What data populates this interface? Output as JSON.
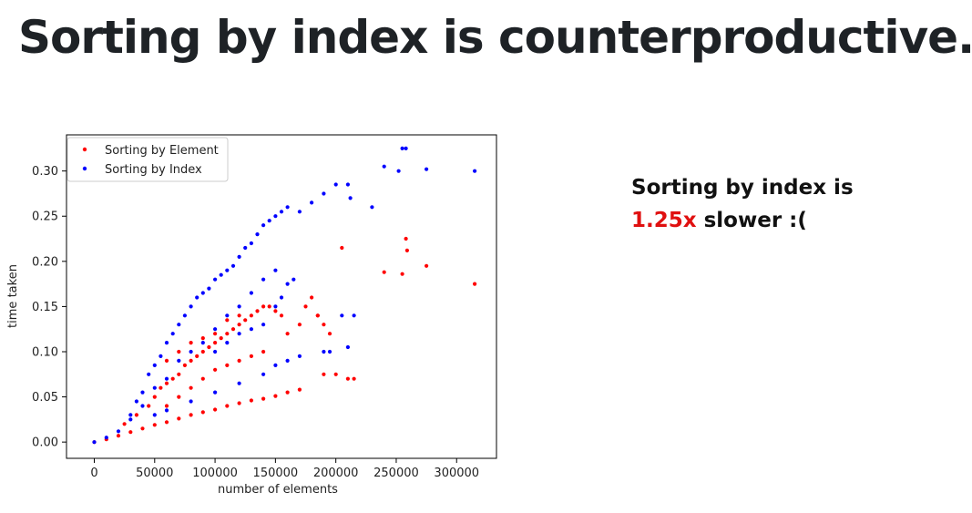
{
  "slide": {
    "title": "Sorting by index is counterproductive..",
    "summary": {
      "line1": "Sorting by index is",
      "ratio": "1.25x",
      "line2_rest": " slower :("
    },
    "colors": {
      "highlight": "#e01010",
      "title": "#1e2226"
    }
  },
  "chart_data": {
    "type": "scatter",
    "title": "",
    "xlabel": "number of elements",
    "ylabel": "time taken",
    "xlim": [
      -23000,
      333000
    ],
    "ylim": [
      -0.018,
      0.34
    ],
    "xticks": [
      0,
      50000,
      100000,
      150000,
      200000,
      250000,
      300000
    ],
    "yticks": [
      0.0,
      0.05,
      0.1,
      0.15,
      0.2,
      0.25,
      0.3
    ],
    "ytick_labels": [
      "0.00",
      "0.05",
      "0.10",
      "0.15",
      "0.20",
      "0.25",
      "0.30"
    ],
    "legend_position": "top-left",
    "grid": false,
    "series": [
      {
        "name": "Sorting by Element",
        "color": "#ff0000",
        "points": [
          [
            0,
            0
          ],
          [
            10000,
            0.003
          ],
          [
            20000,
            0.007
          ],
          [
            30000,
            0.011
          ],
          [
            40000,
            0.015
          ],
          [
            50000,
            0.019
          ],
          [
            60000,
            0.022
          ],
          [
            70000,
            0.026
          ],
          [
            80000,
            0.03
          ],
          [
            90000,
            0.033
          ],
          [
            100000,
            0.036
          ],
          [
            110000,
            0.04
          ],
          [
            120000,
            0.043
          ],
          [
            130000,
            0.046
          ],
          [
            140000,
            0.048
          ],
          [
            150000,
            0.051
          ],
          [
            160000,
            0.055
          ],
          [
            170000,
            0.058
          ],
          [
            25000,
            0.02
          ],
          [
            35000,
            0.03
          ],
          [
            45000,
            0.04
          ],
          [
            50000,
            0.05
          ],
          [
            55000,
            0.06
          ],
          [
            60000,
            0.065
          ],
          [
            65000,
            0.07
          ],
          [
            70000,
            0.075
          ],
          [
            75000,
            0.085
          ],
          [
            80000,
            0.09
          ],
          [
            85000,
            0.095
          ],
          [
            90000,
            0.1
          ],
          [
            95000,
            0.105
          ],
          [
            100000,
            0.11
          ],
          [
            105000,
            0.115
          ],
          [
            110000,
            0.12
          ],
          [
            115000,
            0.125
          ],
          [
            120000,
            0.13
          ],
          [
            125000,
            0.135
          ],
          [
            130000,
            0.14
          ],
          [
            135000,
            0.145
          ],
          [
            140000,
            0.15
          ],
          [
            145000,
            0.15
          ],
          [
            150000,
            0.145
          ],
          [
            155000,
            0.14
          ],
          [
            60000,
            0.04
          ],
          [
            70000,
            0.05
          ],
          [
            80000,
            0.06
          ],
          [
            90000,
            0.07
          ],
          [
            100000,
            0.08
          ],
          [
            110000,
            0.085
          ],
          [
            120000,
            0.09
          ],
          [
            130000,
            0.095
          ],
          [
            140000,
            0.1
          ],
          [
            60000,
            0.09
          ],
          [
            70000,
            0.1
          ],
          [
            80000,
            0.11
          ],
          [
            90000,
            0.115
          ],
          [
            100000,
            0.12
          ],
          [
            110000,
            0.135
          ],
          [
            120000,
            0.14
          ],
          [
            160000,
            0.12
          ],
          [
            170000,
            0.13
          ],
          [
            175000,
            0.15
          ],
          [
            180000,
            0.16
          ],
          [
            185000,
            0.14
          ],
          [
            190000,
            0.13
          ],
          [
            195000,
            0.12
          ],
          [
            205000,
            0.215
          ],
          [
            210000,
            0.07
          ],
          [
            215000,
            0.07
          ],
          [
            200000,
            0.075
          ],
          [
            190000,
            0.075
          ],
          [
            185000,
            0.14
          ],
          [
            240000,
            0.188
          ],
          [
            255000,
            0.186
          ],
          [
            258000,
            0.225
          ],
          [
            259000,
            0.212
          ],
          [
            275000,
            0.195
          ],
          [
            315000,
            0.175
          ]
        ]
      },
      {
        "name": "Sorting by Index",
        "color": "#0000ff",
        "points": [
          [
            0,
            0
          ],
          [
            10000,
            0.005
          ],
          [
            20000,
            0.012
          ],
          [
            30000,
            0.025
          ],
          [
            35000,
            0.045
          ],
          [
            40000,
            0.055
          ],
          [
            45000,
            0.075
          ],
          [
            50000,
            0.085
          ],
          [
            55000,
            0.095
          ],
          [
            60000,
            0.11
          ],
          [
            65000,
            0.12
          ],
          [
            70000,
            0.13
          ],
          [
            75000,
            0.14
          ],
          [
            80000,
            0.15
          ],
          [
            85000,
            0.16
          ],
          [
            90000,
            0.165
          ],
          [
            95000,
            0.17
          ],
          [
            100000,
            0.18
          ],
          [
            105000,
            0.185
          ],
          [
            110000,
            0.19
          ],
          [
            115000,
            0.195
          ],
          [
            120000,
            0.205
          ],
          [
            125000,
            0.215
          ],
          [
            130000,
            0.22
          ],
          [
            135000,
            0.23
          ],
          [
            140000,
            0.24
          ],
          [
            145000,
            0.245
          ],
          [
            150000,
            0.25
          ],
          [
            155000,
            0.255
          ],
          [
            160000,
            0.26
          ],
          [
            170000,
            0.255
          ],
          [
            180000,
            0.265
          ],
          [
            190000,
            0.275
          ],
          [
            200000,
            0.285
          ],
          [
            210000,
            0.285
          ],
          [
            30000,
            0.03
          ],
          [
            40000,
            0.04
          ],
          [
            50000,
            0.06
          ],
          [
            60000,
            0.07
          ],
          [
            70000,
            0.09
          ],
          [
            80000,
            0.1
          ],
          [
            90000,
            0.11
          ],
          [
            100000,
            0.125
          ],
          [
            110000,
            0.14
          ],
          [
            120000,
            0.15
          ],
          [
            130000,
            0.165
          ],
          [
            140000,
            0.18
          ],
          [
            150000,
            0.19
          ],
          [
            50000,
            0.03
          ],
          [
            60000,
            0.035
          ],
          [
            80000,
            0.045
          ],
          [
            100000,
            0.055
          ],
          [
            120000,
            0.065
          ],
          [
            140000,
            0.075
          ],
          [
            150000,
            0.085
          ],
          [
            160000,
            0.09
          ],
          [
            170000,
            0.095
          ],
          [
            100000,
            0.1
          ],
          [
            110000,
            0.11
          ],
          [
            120000,
            0.12
          ],
          [
            130000,
            0.125
          ],
          [
            140000,
            0.13
          ],
          [
            150000,
            0.15
          ],
          [
            155000,
            0.16
          ],
          [
            160000,
            0.175
          ],
          [
            165000,
            0.18
          ],
          [
            190000,
            0.1
          ],
          [
            195000,
            0.1
          ],
          [
            205000,
            0.14
          ],
          [
            210000,
            0.105
          ],
          [
            215000,
            0.14
          ],
          [
            212000,
            0.27
          ],
          [
            230000,
            0.26
          ],
          [
            240000,
            0.305
          ],
          [
            255000,
            0.325
          ],
          [
            258000,
            0.325
          ],
          [
            252000,
            0.3
          ],
          [
            275000,
            0.302
          ],
          [
            315000,
            0.3
          ]
        ]
      }
    ]
  }
}
